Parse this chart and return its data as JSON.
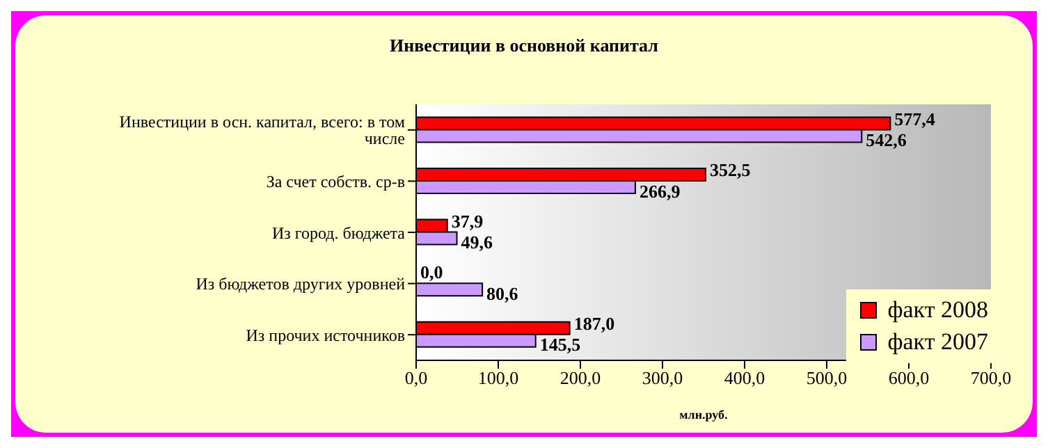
{
  "chart_data": {
    "type": "bar",
    "orientation": "horizontal",
    "title": "Инвестиции в основной капитал",
    "xlabel": "млн.руб.",
    "categories": [
      "Инвестиции в осн. капитал, всего: в том числе",
      "За счет собств. ср-в",
      "Из город. бюджета",
      "Из бюджетов других уровней",
      "Из прочих источников"
    ],
    "series": [
      {
        "name": "факт 2008",
        "color": "#ff0000",
        "values": [
          577.4,
          352.5,
          37.9,
          0.0,
          187.0
        ],
        "value_labels": [
          "577,4",
          "352,5",
          "37,9",
          "0,0",
          "187,0"
        ]
      },
      {
        "name": "факт 2007",
        "color": "#cc99ff",
        "values": [
          542.6,
          266.9,
          49.6,
          80.6,
          145.5
        ],
        "value_labels": [
          "542,6",
          "266,9",
          "49,6",
          "80,6",
          "145,5"
        ]
      }
    ],
    "xlim": [
      0,
      700
    ],
    "xticks": [
      {
        "value": 0,
        "label": "0,0"
      },
      {
        "value": 100,
        "label": "100,0"
      },
      {
        "value": 200,
        "label": "200,0"
      },
      {
        "value": 300,
        "label": "300,0"
      },
      {
        "value": 400,
        "label": "400,0"
      },
      {
        "value": 500,
        "label": "500,0"
      },
      {
        "value": 600,
        "label": "600,0"
      },
      {
        "value": 700,
        "label": "700,0"
      }
    ],
    "legend": "bottom right",
    "grid": false
  }
}
